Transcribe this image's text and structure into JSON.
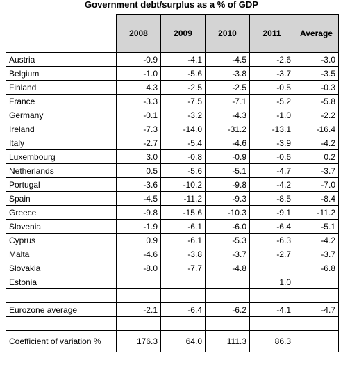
{
  "title": "Government debt/surplus as a % of GDP",
  "table": {
    "columns": [
      "2008",
      "2009",
      "2010",
      "2011",
      "Average"
    ],
    "rows": [
      {
        "label": "Austria",
        "values": [
          "-0.9",
          "-4.1",
          "-4.5",
          "-2.6",
          "-3.0"
        ]
      },
      {
        "label": "Belgium",
        "values": [
          "-1.0",
          "-5.6",
          "-3.8",
          "-3.7",
          "-3.5"
        ]
      },
      {
        "label": "Finland",
        "values": [
          "4.3",
          "-2.5",
          "-2.5",
          "-0.5",
          "-0.3"
        ]
      },
      {
        "label": "France",
        "values": [
          "-3.3",
          "-7.5",
          "-7.1",
          "-5.2",
          "-5.8"
        ]
      },
      {
        "label": "Germany",
        "values": [
          "-0.1",
          "-3.2",
          "-4.3",
          "-1.0",
          "-2.2"
        ]
      },
      {
        "label": "Ireland",
        "values": [
          "-7.3",
          "-14.0",
          "-31.2",
          "-13.1",
          "-16.4"
        ]
      },
      {
        "label": "Italy",
        "values": [
          "-2.7",
          "-5.4",
          "-4.6",
          "-3.9",
          "-4.2"
        ]
      },
      {
        "label": "Luxembourg",
        "values": [
          "3.0",
          "-0.8",
          "-0.9",
          "-0.6",
          "0.2"
        ]
      },
      {
        "label": "Netherlands",
        "values": [
          "0.5",
          "-5.6",
          "-5.1",
          "-4.7",
          "-3.7"
        ]
      },
      {
        "label": "Portugal",
        "values": [
          "-3.6",
          "-10.2",
          "-9.8",
          "-4.2",
          "-7.0"
        ]
      },
      {
        "label": "Spain",
        "values": [
          "-4.5",
          "-11.2",
          "-9.3",
          "-8.5",
          "-8.4"
        ]
      },
      {
        "label": "Greece",
        "values": [
          "-9.8",
          "-15.6",
          "-10.3",
          "-9.1",
          "-11.2"
        ]
      },
      {
        "label": "Slovenia",
        "values": [
          "-1.9",
          "-6.1",
          "-6.0",
          "-6.4",
          "-5.1"
        ]
      },
      {
        "label": "Cyprus",
        "values": [
          "0.9",
          "-6.1",
          "-5.3",
          "-6.3",
          "-4.2"
        ]
      },
      {
        "label": "Malta",
        "values": [
          "-4.6",
          "-3.8",
          "-3.7",
          "-2.7",
          "-3.7"
        ]
      },
      {
        "label": "Slovakia",
        "values": [
          "-8.0",
          "-7.7",
          "-4.8",
          "",
          "-6.8"
        ]
      },
      {
        "label": "Estonia",
        "values": [
          "",
          "",
          "",
          "1.0",
          ""
        ]
      },
      {
        "label": "",
        "values": [
          "",
          "",
          "",
          "",
          ""
        ]
      },
      {
        "label": "Eurozone average",
        "values": [
          "-2.1",
          "-6.4",
          "-6.2",
          "-4.1",
          "-4.7"
        ]
      },
      {
        "label": "",
        "values": [
          "",
          "",
          "",
          "",
          ""
        ]
      }
    ],
    "cv": {
      "label": "Coefficient of variation %",
      "values": [
        "176.3",
        "64.0",
        "111.3",
        "86.3",
        ""
      ]
    }
  }
}
